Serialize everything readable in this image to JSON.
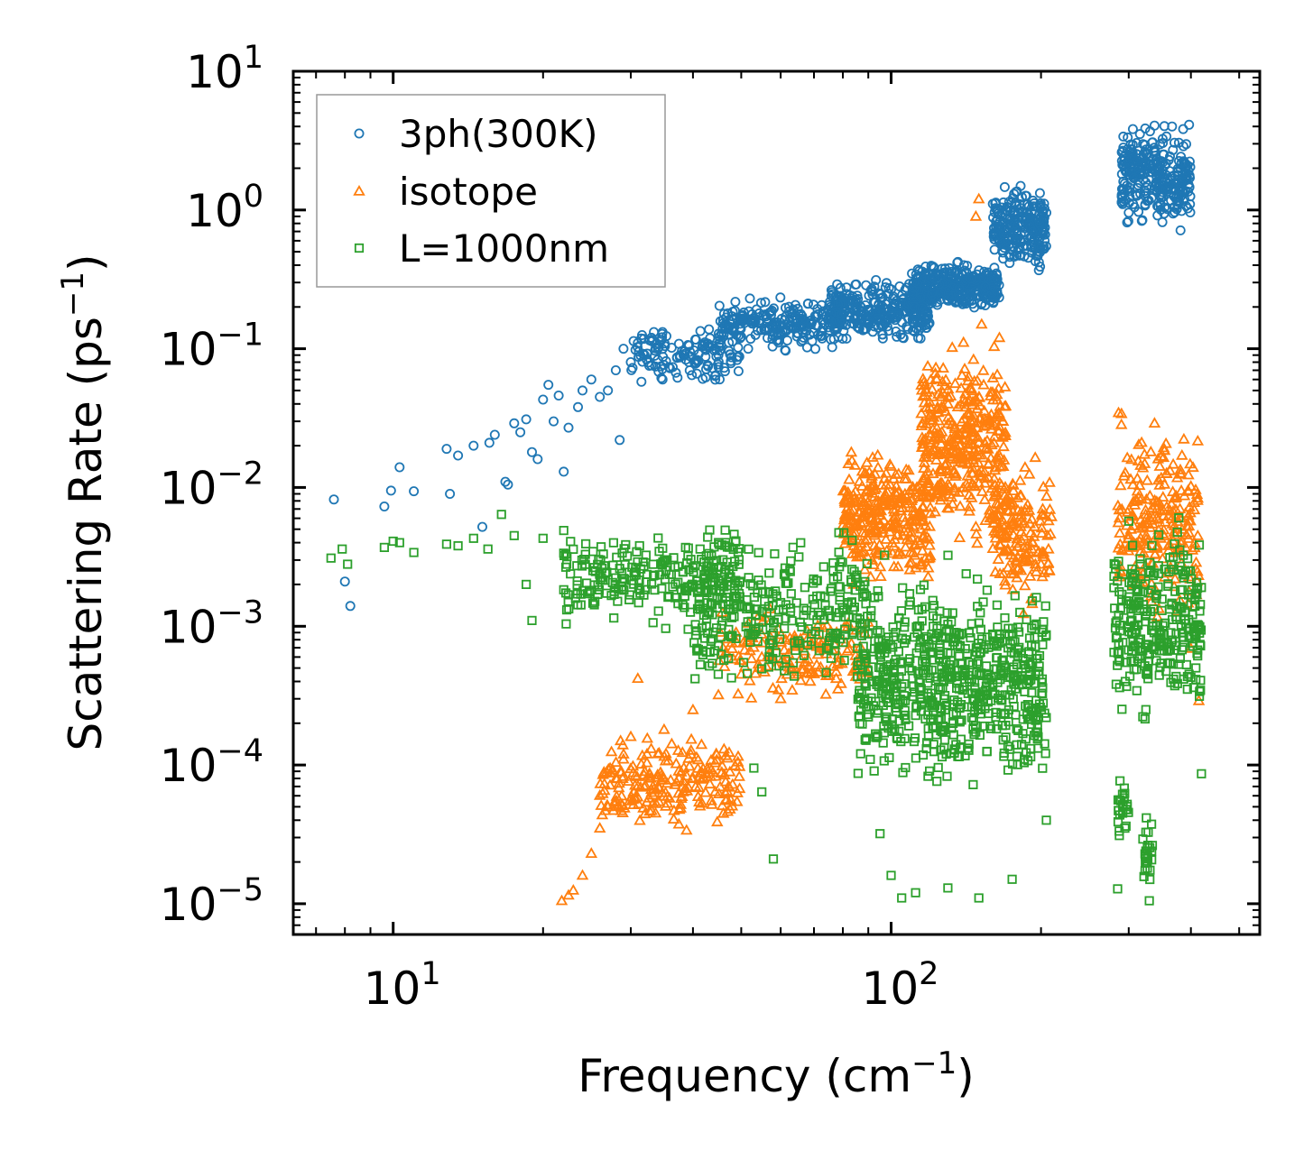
{
  "chart_data": {
    "type": "scatter",
    "title": "",
    "xlabel": "Frequency (cm",
    "xlabel_sup": "−1",
    "xlabel_tail": ")",
    "ylabel": "Scattering Rate (ps",
    "ylabel_sup": "−1",
    "ylabel_tail": ")",
    "x_scale": "log",
    "y_scale": "log",
    "xlim": [
      6.3,
      550
    ],
    "ylim": [
      6e-06,
      10
    ],
    "x_ticks": [
      {
        "value": 10,
        "base": "10",
        "exp": "1"
      },
      {
        "value": 100,
        "base": "10",
        "exp": "2"
      }
    ],
    "y_ticks": [
      {
        "value": 10,
        "base": "10",
        "exp": "1"
      },
      {
        "value": 1,
        "base": "10",
        "exp": "0"
      },
      {
        "value": 0.1,
        "base": "10",
        "exp": "−1"
      },
      {
        "value": 0.01,
        "base": "10",
        "exp": "−2"
      },
      {
        "value": 0.001,
        "base": "10",
        "exp": "−3"
      },
      {
        "value": 0.0001,
        "base": "10",
        "exp": "−4"
      },
      {
        "value": 1e-05,
        "base": "10",
        "exp": "−5"
      }
    ],
    "legend_position": "top-left",
    "series": [
      {
        "name": "3ph(300K)",
        "marker": "circle",
        "color": "#1f77b4",
        "points": [
          [
            7.6,
            0.0082
          ],
          [
            8.0,
            0.0021
          ],
          [
            8.2,
            0.0014
          ],
          [
            9.6,
            0.0073
          ],
          [
            9.9,
            0.0095
          ],
          [
            10.3,
            0.014
          ],
          [
            11.0,
            0.0094
          ],
          [
            12.8,
            0.019
          ],
          [
            13.0,
            0.009
          ],
          [
            13.5,
            0.017
          ],
          [
            14.5,
            0.02
          ],
          [
            15.1,
            0.0052
          ],
          [
            15.6,
            0.021
          ],
          [
            16.0,
            0.024
          ],
          [
            16.8,
            0.011
          ],
          [
            17.0,
            0.0105
          ],
          [
            17.5,
            0.029
          ],
          [
            18.0,
            0.025
          ],
          [
            18.5,
            0.031
          ],
          [
            19.0,
            0.018
          ],
          [
            19.5,
            0.016
          ],
          [
            20.0,
            0.043
          ],
          [
            20.5,
            0.055
          ],
          [
            21.0,
            0.03
          ],
          [
            21.5,
            0.046
          ],
          [
            22.0,
            0.013
          ],
          [
            22.5,
            0.027
          ],
          [
            23.5,
            0.038
          ],
          [
            24.0,
            0.05
          ],
          [
            25.0,
            0.06
          ],
          [
            26.0,
            0.045
          ],
          [
            27.0,
            0.05
          ],
          [
            28.0,
            0.07
          ],
          [
            28.5,
            0.022
          ],
          [
            29.0,
            0.1
          ],
          [
            30.0,
            0.08
          ],
          [
            31.0,
            0.11
          ],
          [
            32.0,
            0.09
          ],
          [
            33.0,
            0.12
          ],
          [
            34.0,
            0.1
          ]
        ],
        "bands": [
          {
            "x": [
              30,
              50
            ],
            "y": [
              0.05,
              0.16
            ],
            "n": 140
          },
          {
            "x": [
              45,
              80
            ],
            "y": [
              0.09,
              0.26
            ],
            "n": 240
          },
          {
            "x": [
              75,
              120
            ],
            "y": [
              0.1,
              0.34
            ],
            "n": 300
          },
          {
            "x": [
              110,
              165
            ],
            "y": [
              0.17,
              0.45
            ],
            "n": 360
          },
          {
            "x": [
              160,
              205
            ],
            "y": [
              0.3,
              1.9
            ],
            "n": 240
          },
          {
            "x": [
              290,
              400
            ],
            "y": [
              0.62,
              5.0
            ],
            "n": 300
          }
        ]
      },
      {
        "name": "isotope",
        "marker": "triangle",
        "color": "#ff7f0e",
        "points": [
          [
            21.8,
            1.05e-05
          ],
          [
            22.5,
            1.15e-05
          ],
          [
            23.0,
            1.25e-05
          ],
          [
            24.0,
            1.6e-05
          ],
          [
            25.0,
            2.3e-05
          ],
          [
            26.0,
            3.5e-05
          ],
          [
            27.0,
            5e-05
          ],
          [
            28.0,
            8e-05
          ],
          [
            29.0,
            0.00011
          ],
          [
            30.0,
            0.00016
          ],
          [
            31.0,
            0.00042
          ],
          [
            35.0,
            0.00018
          ],
          [
            40.0,
            0.00025
          ],
          [
            45.0,
            0.00032
          ],
          [
            50.0,
            0.00045
          ],
          [
            55.0,
            0.0006
          ],
          [
            60.0,
            0.0003
          ],
          [
            65.0,
            0.00045
          ],
          [
            150.0,
            1.2
          ],
          [
            148.0,
            0.9
          ],
          [
            152.0,
            0.15
          ],
          [
            165.0,
            0.12
          ],
          [
            415.0,
            0.00029
          ],
          [
            400.0,
            0.00069
          ]
        ],
        "bands": [
          {
            "x": [
              26,
              50
            ],
            "y": [
              3e-05,
              0.0002
            ],
            "n": 220
          },
          {
            "x": [
              45,
              90
            ],
            "y": [
              0.00025,
              0.0015
            ],
            "n": 160
          },
          {
            "x": [
              80,
              120
            ],
            "y": [
              0.0015,
              0.025
            ],
            "n": 320
          },
          {
            "x": [
              115,
              170
            ],
            "y": [
              0.003,
              0.15
            ],
            "n": 380
          },
          {
            "x": [
              160,
              210
            ],
            "y": [
              0.001,
              0.02
            ],
            "n": 160
          },
          {
            "x": [
              285,
              415
            ],
            "y": [
              0.0008,
              0.045
            ],
            "n": 240
          }
        ]
      },
      {
        "name": "L=1000nm",
        "marker": "square",
        "color": "#2ca02c",
        "points": [
          [
            7.5,
            0.0031
          ],
          [
            7.9,
            0.0036
          ],
          [
            8.1,
            0.0028
          ],
          [
            9.6,
            0.0037
          ],
          [
            10.0,
            0.0041
          ],
          [
            10.3,
            0.004
          ],
          [
            11.0,
            0.0034
          ],
          [
            12.8,
            0.0039
          ],
          [
            13.5,
            0.0038
          ],
          [
            14.5,
            0.0043
          ],
          [
            15.5,
            0.0036
          ],
          [
            16.5,
            0.0064
          ],
          [
            17.5,
            0.0045
          ],
          [
            18.5,
            0.002
          ],
          [
            19.0,
            0.0011
          ],
          [
            20.0,
            0.0043
          ],
          [
            22.0,
            0.0049
          ],
          [
            53.0,
            9.5e-05
          ],
          [
            55.0,
            6.4e-05
          ],
          [
            58.0,
            2.1e-05
          ],
          [
            95.0,
            3.2e-05
          ],
          [
            100.0,
            1.6e-05
          ],
          [
            105.0,
            1.1e-05
          ],
          [
            112.0,
            1.2e-05
          ],
          [
            130.0,
            1.3e-05
          ],
          [
            150.0,
            1.1e-05
          ],
          [
            175.0,
            1.5e-05
          ],
          [
            205.0,
            4e-05
          ],
          [
            285.0,
            1.28e-05
          ],
          [
            330.0,
            1.05e-05
          ],
          [
            420.0,
            8.65e-05
          ]
        ],
        "bands": [
          {
            "x": [
              22,
              50
            ],
            "y": [
              0.0009,
              0.0055
            ],
            "n": 240
          },
          {
            "x": [
              40,
              90
            ],
            "y": [
              0.00026,
              0.0065
            ],
            "n": 300
          },
          {
            "x": [
              85,
              205
            ],
            "y": [
              5e-05,
              0.0035
            ],
            "n": 700
          },
          {
            "x": [
              280,
              420
            ],
            "y": [
              0.00015,
              0.0075
            ],
            "n": 300
          },
          {
            "x": [
              285,
              300
            ],
            "y": [
              2.4e-05,
              9e-05
            ],
            "n": 25
          },
          {
            "x": [
              320,
              335
            ],
            "y": [
              1e-05,
              5e-05
            ],
            "n": 25
          }
        ]
      }
    ]
  }
}
